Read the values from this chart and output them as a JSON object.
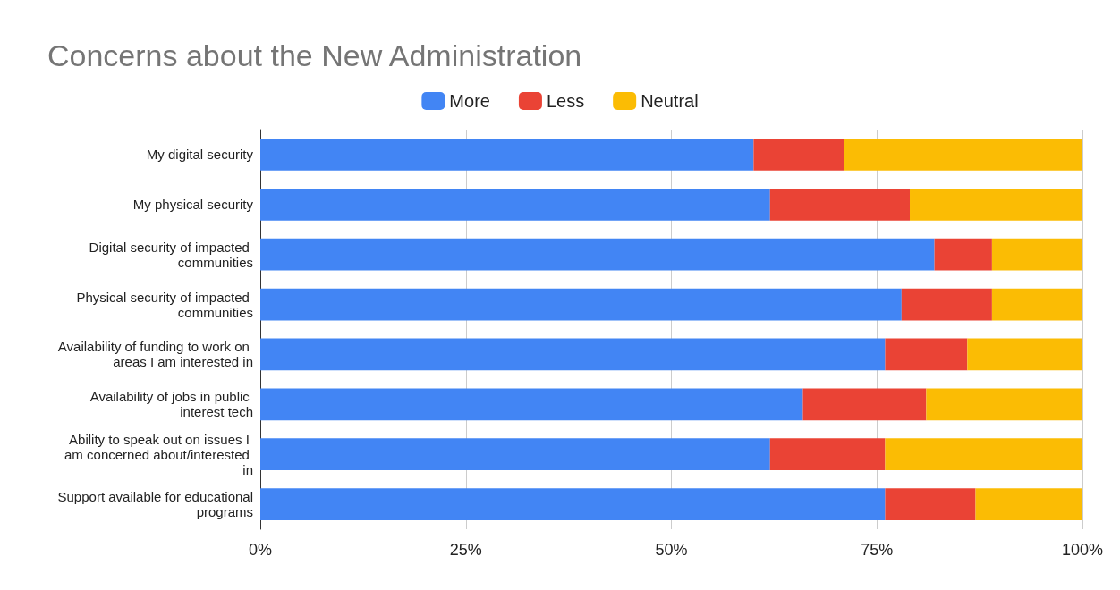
{
  "chart_data": {
    "type": "bar",
    "orientation": "horizontal",
    "stacked": true,
    "title": "Concerns about the New Administration",
    "categories": [
      "My digital security",
      "My physical security",
      "Digital security of impacted communities",
      "Physical security of impacted communities",
      "Availability of funding to work on areas I am interested in",
      "Availability of jobs in public interest tech",
      "Ability to speak out on issues I am concerned about/interested in",
      "Support available for educational programs"
    ],
    "series": [
      {
        "name": "More",
        "color": "#4285f4",
        "values": [
          60,
          62,
          82,
          78,
          76,
          66,
          62,
          76
        ]
      },
      {
        "name": "Less",
        "color": "#ea4335",
        "values": [
          11,
          17,
          7,
          11,
          10,
          15,
          14,
          11
        ]
      },
      {
        "name": "Neutral",
        "color": "#fbbc04",
        "values": [
          29,
          21,
          11,
          11,
          14,
          19,
          24,
          13
        ]
      }
    ],
    "xlim": [
      0,
      100
    ],
    "xticks": [
      {
        "value": 0,
        "label": "0%"
      },
      {
        "value": 25,
        "label": "25%"
      },
      {
        "value": 50,
        "label": "50%"
      },
      {
        "value": 75,
        "label": "75%"
      },
      {
        "value": 100,
        "label": "100%"
      }
    ],
    "grid": "x",
    "legend": "top"
  }
}
